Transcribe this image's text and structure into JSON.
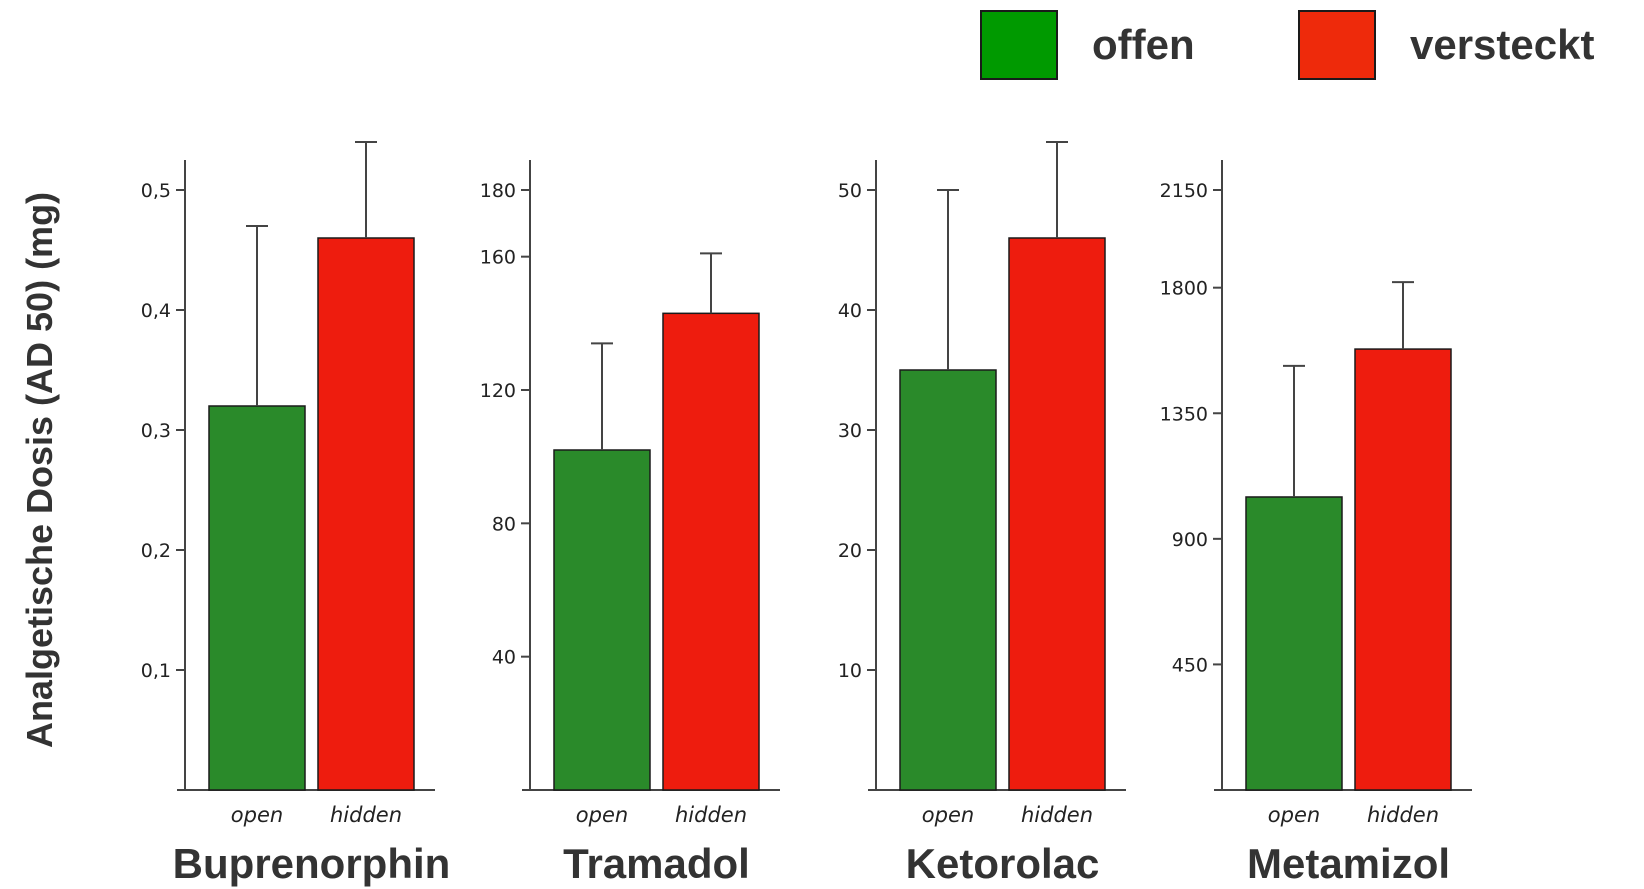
{
  "legend": {
    "items": [
      {
        "label": "offen",
        "color": "#009a00"
      },
      {
        "label": "versteckt",
        "color": "#ee2a0b"
      }
    ]
  },
  "ylabel": "Analgetische Dosis (AD 50) (mg)",
  "colors": {
    "open_bar": "#2a8a2a",
    "hidden_bar": "#ee1c0e",
    "axis": "#444444"
  },
  "chart_data": [
    {
      "type": "bar",
      "title": "Buprenorphin",
      "categories": [
        "open",
        "hidden"
      ],
      "values": [
        0.32,
        0.46
      ],
      "error_upper": [
        0.47,
        0.54
      ],
      "ylim": [
        0,
        0.5
      ],
      "ticks": [
        0.1,
        0.2,
        0.3,
        0.4,
        0.5
      ],
      "tick_labels": [
        "0,1",
        "0,2",
        "0,3",
        "0,4",
        "0,5"
      ]
    },
    {
      "type": "bar",
      "title": "Tramadol",
      "categories": [
        "open",
        "hidden"
      ],
      "values": [
        102,
        143
      ],
      "error_upper": [
        134,
        161
      ],
      "ylim": [
        0,
        180
      ],
      "ticks": [
        40,
        80,
        120,
        160,
        180
      ],
      "tick_labels": [
        "40",
        "80",
        "120",
        "160",
        "180"
      ]
    },
    {
      "type": "bar",
      "title": "Ketorolac",
      "categories": [
        "open",
        "hidden"
      ],
      "values": [
        35,
        46
      ],
      "error_upper": [
        50,
        54
      ],
      "ylim": [
        0,
        50
      ],
      "ticks": [
        10,
        20,
        30,
        40,
        50
      ],
      "tick_labels": [
        "10",
        "20",
        "30",
        "40",
        "50"
      ]
    },
    {
      "type": "bar",
      "title": "Metamizol",
      "categories": [
        "open",
        "hidden"
      ],
      "values": [
        1050,
        1580
      ],
      "error_upper": [
        1520,
        1820
      ],
      "ylim": [
        0,
        2150
      ],
      "ticks": [
        450,
        900,
        1350,
        1800,
        2150
      ],
      "tick_labels": [
        "450",
        "900",
        "1350",
        "1800",
        "2150"
      ]
    }
  ]
}
